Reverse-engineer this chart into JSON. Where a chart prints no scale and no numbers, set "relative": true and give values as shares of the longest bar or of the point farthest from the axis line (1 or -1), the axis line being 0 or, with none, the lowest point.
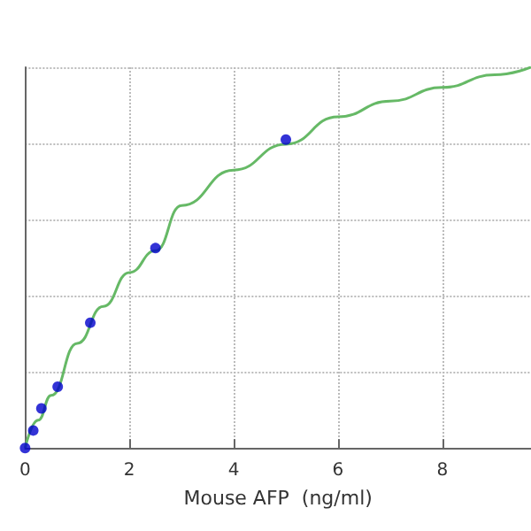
{
  "chart_data": {
    "type": "scatter",
    "xlabel": "Mouse AFP  (ng/ml)",
    "relative": true,
    "xlim": [
      0,
      9.7
    ],
    "xticks": [
      0,
      2,
      4,
      6,
      8
    ],
    "grid": true,
    "marker": "circle",
    "series": [
      {
        "type": "line",
        "color": "#66b966",
        "marker": "none",
        "x": [
          0,
          0.25,
          0.5,
          1,
          1.5,
          2,
          2.5,
          3,
          4,
          5,
          6,
          7,
          8,
          9,
          9.7
        ],
        "values": [
          0,
          0.073,
          0.138,
          0.275,
          0.372,
          0.461,
          0.518,
          0.637,
          0.73,
          0.798,
          0.87,
          0.911,
          0.947,
          0.98,
          1
        ]
      },
      {
        "color": "#0000cc",
        "x": [
          0,
          0.156,
          0.3125,
          0.625,
          1.25,
          2.5,
          5
        ],
        "values": [
          0,
          0.046,
          0.104,
          0.161,
          0.329,
          0.525,
          0.81
        ]
      }
    ]
  }
}
